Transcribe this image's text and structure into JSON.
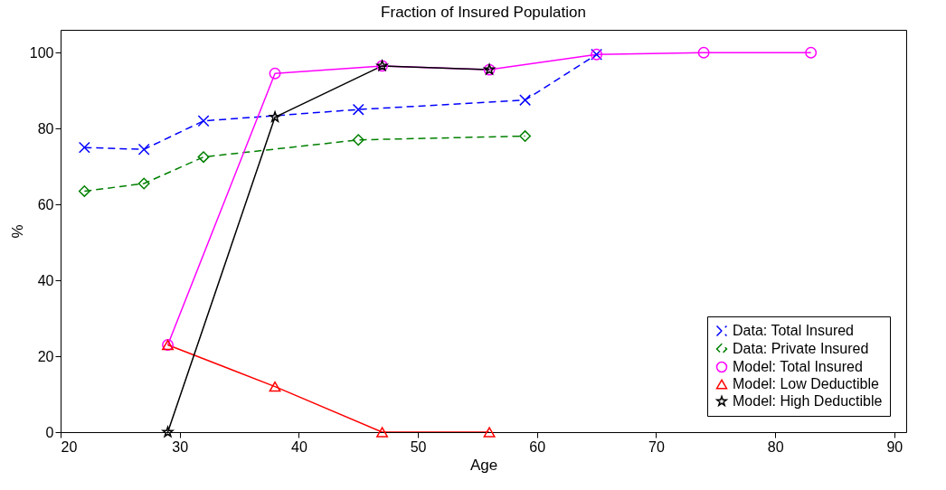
{
  "chart_data": {
    "type": "line",
    "title": "Fraction of Insured Population",
    "xlabel": "Age",
    "ylabel": "%",
    "xlim": [
      20,
      91
    ],
    "ylim": [
      0,
      106
    ],
    "xticks": [
      20,
      30,
      40,
      50,
      60,
      70,
      80,
      90
    ],
    "yticks": [
      0,
      20,
      40,
      60,
      80,
      100
    ],
    "grid": false,
    "legend": "bottom right",
    "series": [
      {
        "name": "Data: Total Insured",
        "color": "#0000ff",
        "marker": "cross",
        "line_style": "dashed",
        "x": [
          22,
          27,
          32,
          45,
          59,
          65
        ],
        "values": [
          75,
          74.5,
          82,
          85,
          87.5,
          99.5
        ]
      },
      {
        "name": "Data: Private Insured",
        "color": "#008000",
        "marker": "diamond",
        "line_style": "dashed",
        "x": [
          22,
          27,
          32,
          45,
          59
        ],
        "values": [
          63.5,
          65.5,
          72.5,
          77,
          78
        ]
      },
      {
        "name": "Model: Total Insured",
        "color": "#ff00ff",
        "marker": "circle",
        "line_style": "solid",
        "x": [
          29,
          38,
          47,
          56,
          65,
          74,
          83
        ],
        "values": [
          23,
          94.5,
          96.5,
          95.5,
          99.5,
          100,
          100
        ]
      },
      {
        "name": "Model: Low Deductible",
        "color": "#ff0000",
        "marker": "triangle",
        "line_style": "solid",
        "x": [
          29,
          38,
          47,
          56
        ],
        "values": [
          23,
          12,
          0,
          0
        ]
      },
      {
        "name": "Model: High Deductible",
        "color": "#000000",
        "marker": "star",
        "line_style": "solid",
        "x": [
          29,
          38,
          47,
          56
        ],
        "values": [
          0,
          83,
          96.5,
          95.5
        ]
      }
    ]
  }
}
